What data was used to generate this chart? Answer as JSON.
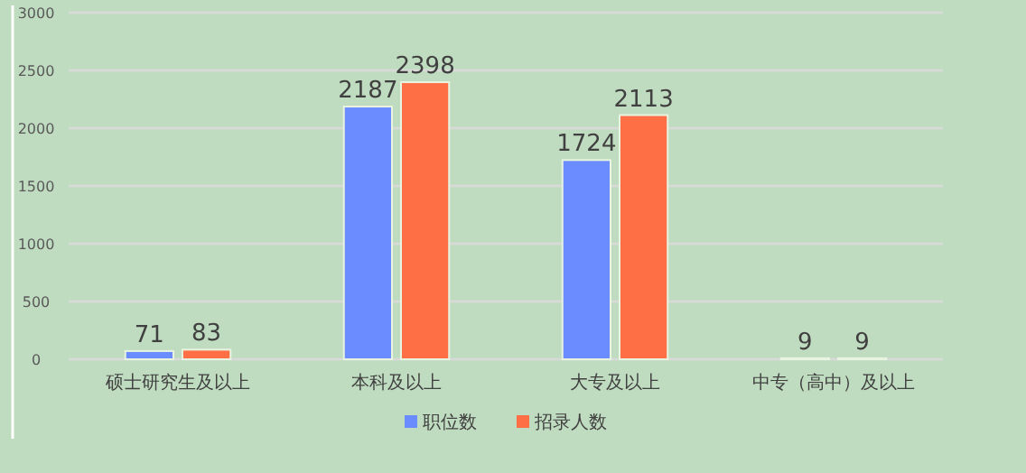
{
  "chart_data": {
    "type": "bar",
    "categories": [
      "硕士研究生及以上",
      "本科及以上",
      "大专及以上",
      "中专（高中）及以上"
    ],
    "series": [
      {
        "name": "职位数",
        "color": "#6b8cff",
        "values": [
          71,
          2187,
          1724,
          9
        ]
      },
      {
        "name": "招录人数",
        "color": "#ff6f45",
        "values": [
          83,
          2398,
          2113,
          9
        ]
      }
    ],
    "ylim": [
      0,
      3000
    ],
    "yticks": [
      0,
      500,
      1000,
      1500,
      2000,
      2500,
      3000
    ],
    "grid": "y",
    "legend": "bottom",
    "data_labels": true
  }
}
